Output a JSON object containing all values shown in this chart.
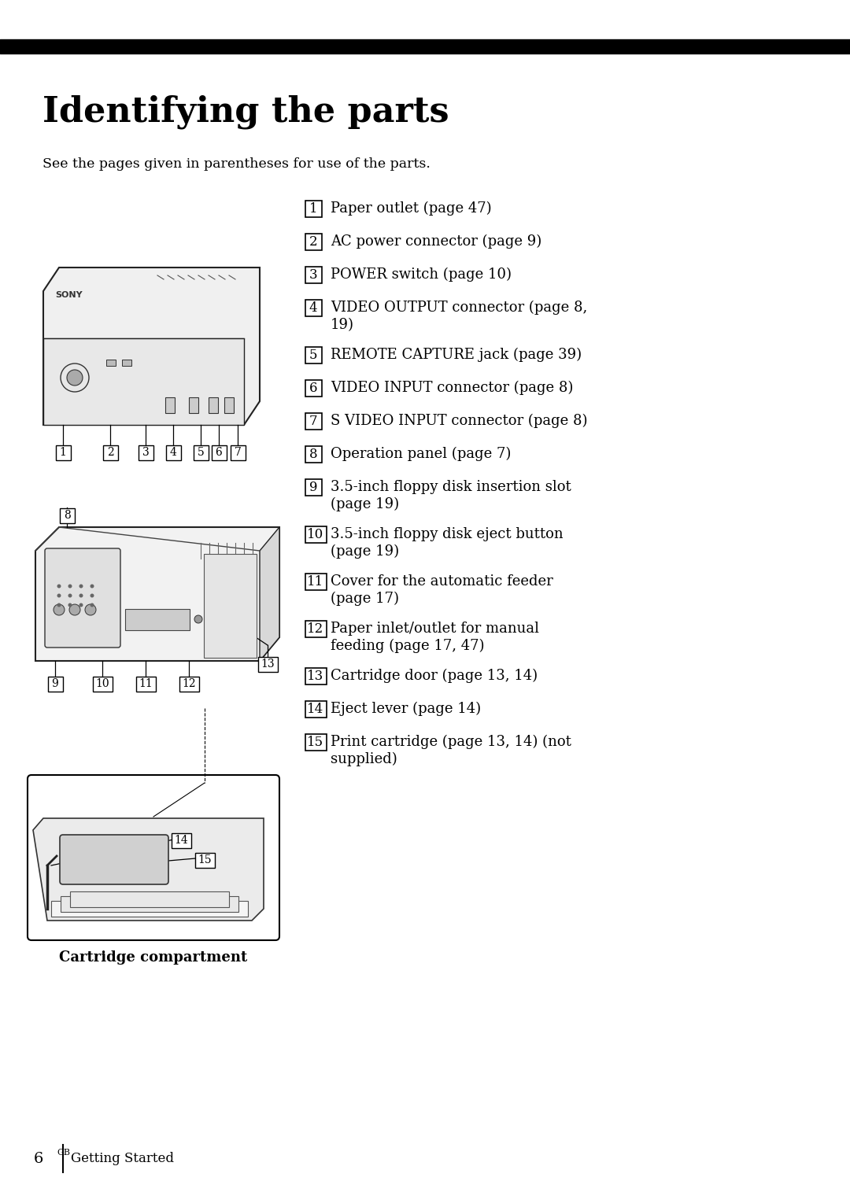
{
  "title": "Identifying the parts",
  "subtitle": "See the pages given in parentheses for use of the parts.",
  "bg_color": "#ffffff",
  "top_bar_color": "#000000",
  "footer_num": "6",
  "footer_super": "GB",
  "footer_label": "Getting Started",
  "items": [
    {
      "num": "1",
      "text": "Paper outlet (page 47)",
      "twoline": false
    },
    {
      "num": "2",
      "text": "AC power connector (page 9)",
      "twoline": false
    },
    {
      "num": "3",
      "text": "POWER switch (page 10)",
      "twoline": false
    },
    {
      "num": "4",
      "text": "VIDEO OUTPUT connector (page 8,",
      "line2": "19)",
      "twoline": true
    },
    {
      "num": "5",
      "text": "REMOTE CAPTURE jack (page 39)",
      "twoline": false
    },
    {
      "num": "6",
      "text": "VIDEO INPUT connector (page 8)",
      "twoline": false
    },
    {
      "num": "7",
      "text": "S VIDEO INPUT connector (page 8)",
      "twoline": false
    },
    {
      "num": "8",
      "text": "Operation panel (page 7)",
      "twoline": false
    },
    {
      "num": "9",
      "text": "3.5-inch floppy disk insertion slot",
      "line2": "(page 19)",
      "twoline": true
    },
    {
      "num": "10",
      "text": "3.5-inch floppy disk eject button",
      "line2": "(page 19)",
      "twoline": true
    },
    {
      "num": "11",
      "text": "Cover for the automatic feeder",
      "line2": "(page 17)",
      "twoline": true
    },
    {
      "num": "12",
      "text": "Paper inlet/outlet for manual",
      "line2": "feeding (page 17, 47)",
      "twoline": true
    },
    {
      "num": "13",
      "text": "Cartridge door (page 13, 14)",
      "twoline": false
    },
    {
      "num": "14",
      "text": "Eject lever (page 14)",
      "twoline": false
    },
    {
      "num": "15",
      "text": "Print cartridge (page 13, 14) (not",
      "line2": "supplied)",
      "twoline": true
    }
  ],
  "caption": "Cartridge compartment"
}
